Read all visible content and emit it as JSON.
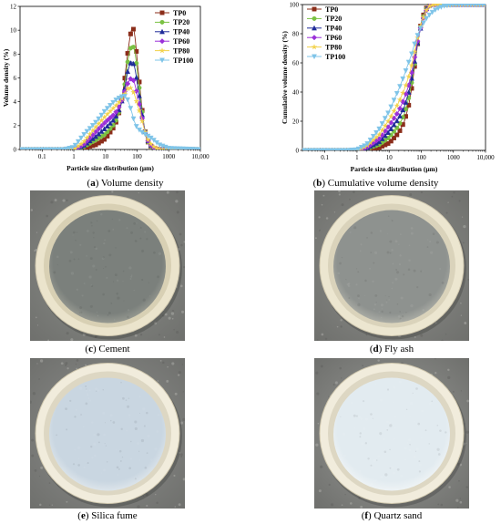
{
  "chart_data": [
    {
      "type": "line",
      "panel": "a",
      "xscale": "log",
      "xlabel": "Particle size distribution (μm)",
      "ylabel": "Volume density (%)",
      "xlim": [
        0.02,
        10000
      ],
      "ylim": [
        0,
        12
      ],
      "xticks": [
        "0.1",
        "1",
        "10",
        "100",
        "1000",
        "10,000"
      ],
      "yticks": [
        "0",
        "2",
        "4",
        "6",
        "8",
        "10",
        "12"
      ],
      "legend_position": "top-right",
      "series": [
        {
          "name": "TP0",
          "color": "#8b2d1a",
          "x": [
            0.02,
            1,
            2,
            5,
            10,
            20,
            30,
            40,
            50,
            60,
            70,
            80,
            90,
            100,
            130,
            160,
            200,
            300,
            500,
            10000
          ],
          "y": [
            0,
            0,
            0.1,
            0.4,
            0.9,
            2.0,
            3.5,
            5.8,
            8.0,
            9.5,
            10.3,
            10.0,
            9.0,
            7.5,
            4.5,
            2.2,
            0.8,
            0.1,
            0,
            0
          ]
        },
        {
          "name": "TP20",
          "color": "#7ac143",
          "x": [
            0.02,
            1,
            2,
            5,
            10,
            20,
            30,
            40,
            50,
            60,
            70,
            80,
            90,
            100,
            130,
            160,
            200,
            300,
            500,
            10000
          ],
          "y": [
            0,
            0,
            0.2,
            0.8,
            1.3,
            2.2,
            3.5,
            5.3,
            7.3,
            8.4,
            8.8,
            8.5,
            7.8,
            6.7,
            4.2,
            2.2,
            0.8,
            0.1,
            0,
            0
          ]
        },
        {
          "name": "TP40",
          "color": "#1f2b99",
          "x": [
            0.02,
            1,
            2,
            5,
            10,
            20,
            30,
            40,
            50,
            60,
            70,
            80,
            90,
            100,
            130,
            160,
            200,
            300,
            500,
            10000
          ],
          "y": [
            0,
            0,
            0.3,
            1.1,
            1.8,
            2.6,
            3.6,
            5.0,
            6.5,
            7.2,
            7.4,
            7.1,
            6.5,
            5.6,
            3.8,
            2.1,
            0.9,
            0.2,
            0,
            0
          ]
        },
        {
          "name": "TP60",
          "color": "#9b30d9",
          "x": [
            0.02,
            1,
            2,
            5,
            10,
            20,
            30,
            40,
            50,
            60,
            70,
            80,
            90,
            100,
            130,
            160,
            200,
            300,
            500,
            10000
          ],
          "y": [
            0,
            0,
            0.4,
            1.5,
            2.3,
            3.0,
            3.8,
            4.8,
            5.5,
            5.9,
            6.0,
            5.7,
            5.2,
            4.6,
            3.3,
            2.0,
            0.9,
            0.2,
            0,
            0
          ]
        },
        {
          "name": "TP80",
          "color": "#f2d24b",
          "x": [
            0.02,
            1,
            2,
            5,
            10,
            20,
            30,
            40,
            50,
            60,
            70,
            80,
            90,
            100,
            130,
            160,
            200,
            300,
            500,
            10000
          ],
          "y": [
            0,
            0,
            0.6,
            1.9,
            2.8,
            3.6,
            4.1,
            4.6,
            5.1,
            5.2,
            5.0,
            4.7,
            4.3,
            3.8,
            2.9,
            1.9,
            1.0,
            0.3,
            0,
            0
          ]
        },
        {
          "name": "TP100",
          "color": "#7fc4e8",
          "x": [
            0.02,
            0.5,
            1,
            2,
            5,
            10,
            20,
            30,
            40,
            50,
            60,
            70,
            80,
            100,
            150,
            200,
            300,
            500,
            1000,
            10000
          ],
          "y": [
            0,
            0,
            0.2,
            1.2,
            2.3,
            3.3,
            4.1,
            4.4,
            4.5,
            4.2,
            3.6,
            3.0,
            2.4,
            1.8,
            1.4,
            1.2,
            0.9,
            0.4,
            0.1,
            0
          ]
        }
      ]
    },
    {
      "type": "line",
      "panel": "b",
      "xscale": "log",
      "xlabel": "Particle size distribution (μm)",
      "ylabel": "Cumulative volume density (%)",
      "xlim": [
        0.02,
        10000
      ],
      "ylim": [
        0,
        100
      ],
      "xticks": [
        "0.1",
        "1",
        "10",
        "100",
        "1000",
        "10,000"
      ],
      "yticks": [
        "0",
        "20",
        "40",
        "60",
        "80",
        "100"
      ],
      "legend_position": "top-left",
      "series": [
        {
          "name": "TP0",
          "color": "#8b2d1a",
          "x": [
            0.02,
            1,
            2,
            5,
            10,
            20,
            30,
            40,
            50,
            60,
            70,
            80,
            100,
            130,
            160,
            200,
            300,
            10000
          ],
          "y": [
            0,
            0,
            0.5,
            2,
            5,
            12,
            20,
            30,
            42,
            55,
            66,
            76,
            88,
            96,
            99,
            100,
            100,
            100
          ]
        },
        {
          "name": "TP20",
          "color": "#7ac143",
          "x": [
            0.02,
            1,
            2,
            5,
            10,
            20,
            30,
            40,
            50,
            60,
            70,
            80,
            100,
            130,
            160,
            200,
            300,
            10000
          ],
          "y": [
            0,
            0,
            1,
            4,
            9,
            17,
            25,
            35,
            46,
            57,
            67,
            76,
            87,
            95,
            99,
            100,
            100,
            100
          ]
        },
        {
          "name": "TP40",
          "color": "#1f2b99",
          "x": [
            0.02,
            1,
            2,
            5,
            10,
            20,
            30,
            40,
            50,
            60,
            70,
            80,
            100,
            130,
            160,
            200,
            300,
            10000
          ],
          "y": [
            0,
            0,
            1.5,
            6,
            13,
            22,
            30,
            39,
            49,
            59,
            68,
            76,
            86,
            95,
            99,
            100,
            100,
            100
          ]
        },
        {
          "name": "TP60",
          "color": "#9b30d9",
          "x": [
            0.02,
            1,
            2,
            5,
            10,
            20,
            30,
            40,
            50,
            60,
            70,
            80,
            100,
            130,
            160,
            200,
            300,
            10000
          ],
          "y": [
            0,
            0,
            2,
            8,
            17,
            27,
            36,
            44,
            53,
            62,
            70,
            77,
            86,
            94,
            98,
            100,
            100,
            100
          ]
        },
        {
          "name": "TP80",
          "color": "#f2d24b",
          "x": [
            0.02,
            1,
            2,
            5,
            10,
            20,
            30,
            40,
            50,
            60,
            70,
            80,
            100,
            130,
            160,
            200,
            300,
            10000
          ],
          "y": [
            0,
            0,
            3,
            11,
            21,
            33,
            42,
            50,
            58,
            66,
            73,
            79,
            87,
            94,
            98,
            99.5,
            100,
            100
          ]
        },
        {
          "name": "TP100",
          "color": "#7fc4e8",
          "x": [
            0.02,
            0.5,
            1,
            2,
            5,
            10,
            20,
            30,
            40,
            50,
            60,
            80,
            100,
            150,
            200,
            300,
            500,
            1000,
            10000
          ],
          "y": [
            0,
            0,
            0.5,
            4,
            15,
            27,
            42,
            52,
            60,
            66,
            72,
            80,
            85,
            91,
            94,
            97,
            99,
            100,
            100
          ]
        }
      ]
    }
  ],
  "captions": {
    "a": {
      "letter": "a",
      "text": "Volume density"
    },
    "b": {
      "letter": "b",
      "text": "Cumulative volume density"
    },
    "c": {
      "letter": "c",
      "text": "Cement"
    },
    "d": {
      "letter": "d",
      "text": "Fly ash"
    },
    "e": {
      "letter": "e",
      "text": "Silica fume"
    },
    "f": {
      "letter": "f",
      "text": "Quartz sand"
    }
  },
  "photos": {
    "c": {
      "background": "#8d908b",
      "powder": "#7b807c",
      "powder_edge": "#969991",
      "rim": "#ebe4cc",
      "rim_inner": "#d8d0b4"
    },
    "d": {
      "background": "#8f908c",
      "powder": "#8e928f",
      "powder_edge": "#a9aba4",
      "rim": "#ece6d0",
      "rim_inner": "#dad3bb"
    },
    "e": {
      "background": "#8e8f8d",
      "powder": "#c9d6e1",
      "powder_edge": "#dce4ea",
      "rim": "#f1ecdc",
      "rim_inner": "#ddd7c3"
    },
    "f": {
      "background": "#9a9b98",
      "powder": "#e2ebf0",
      "powder_edge": "#eef3f5",
      "rim": "#f1ecdc",
      "rim_inner": "#ddd7c3"
    }
  }
}
